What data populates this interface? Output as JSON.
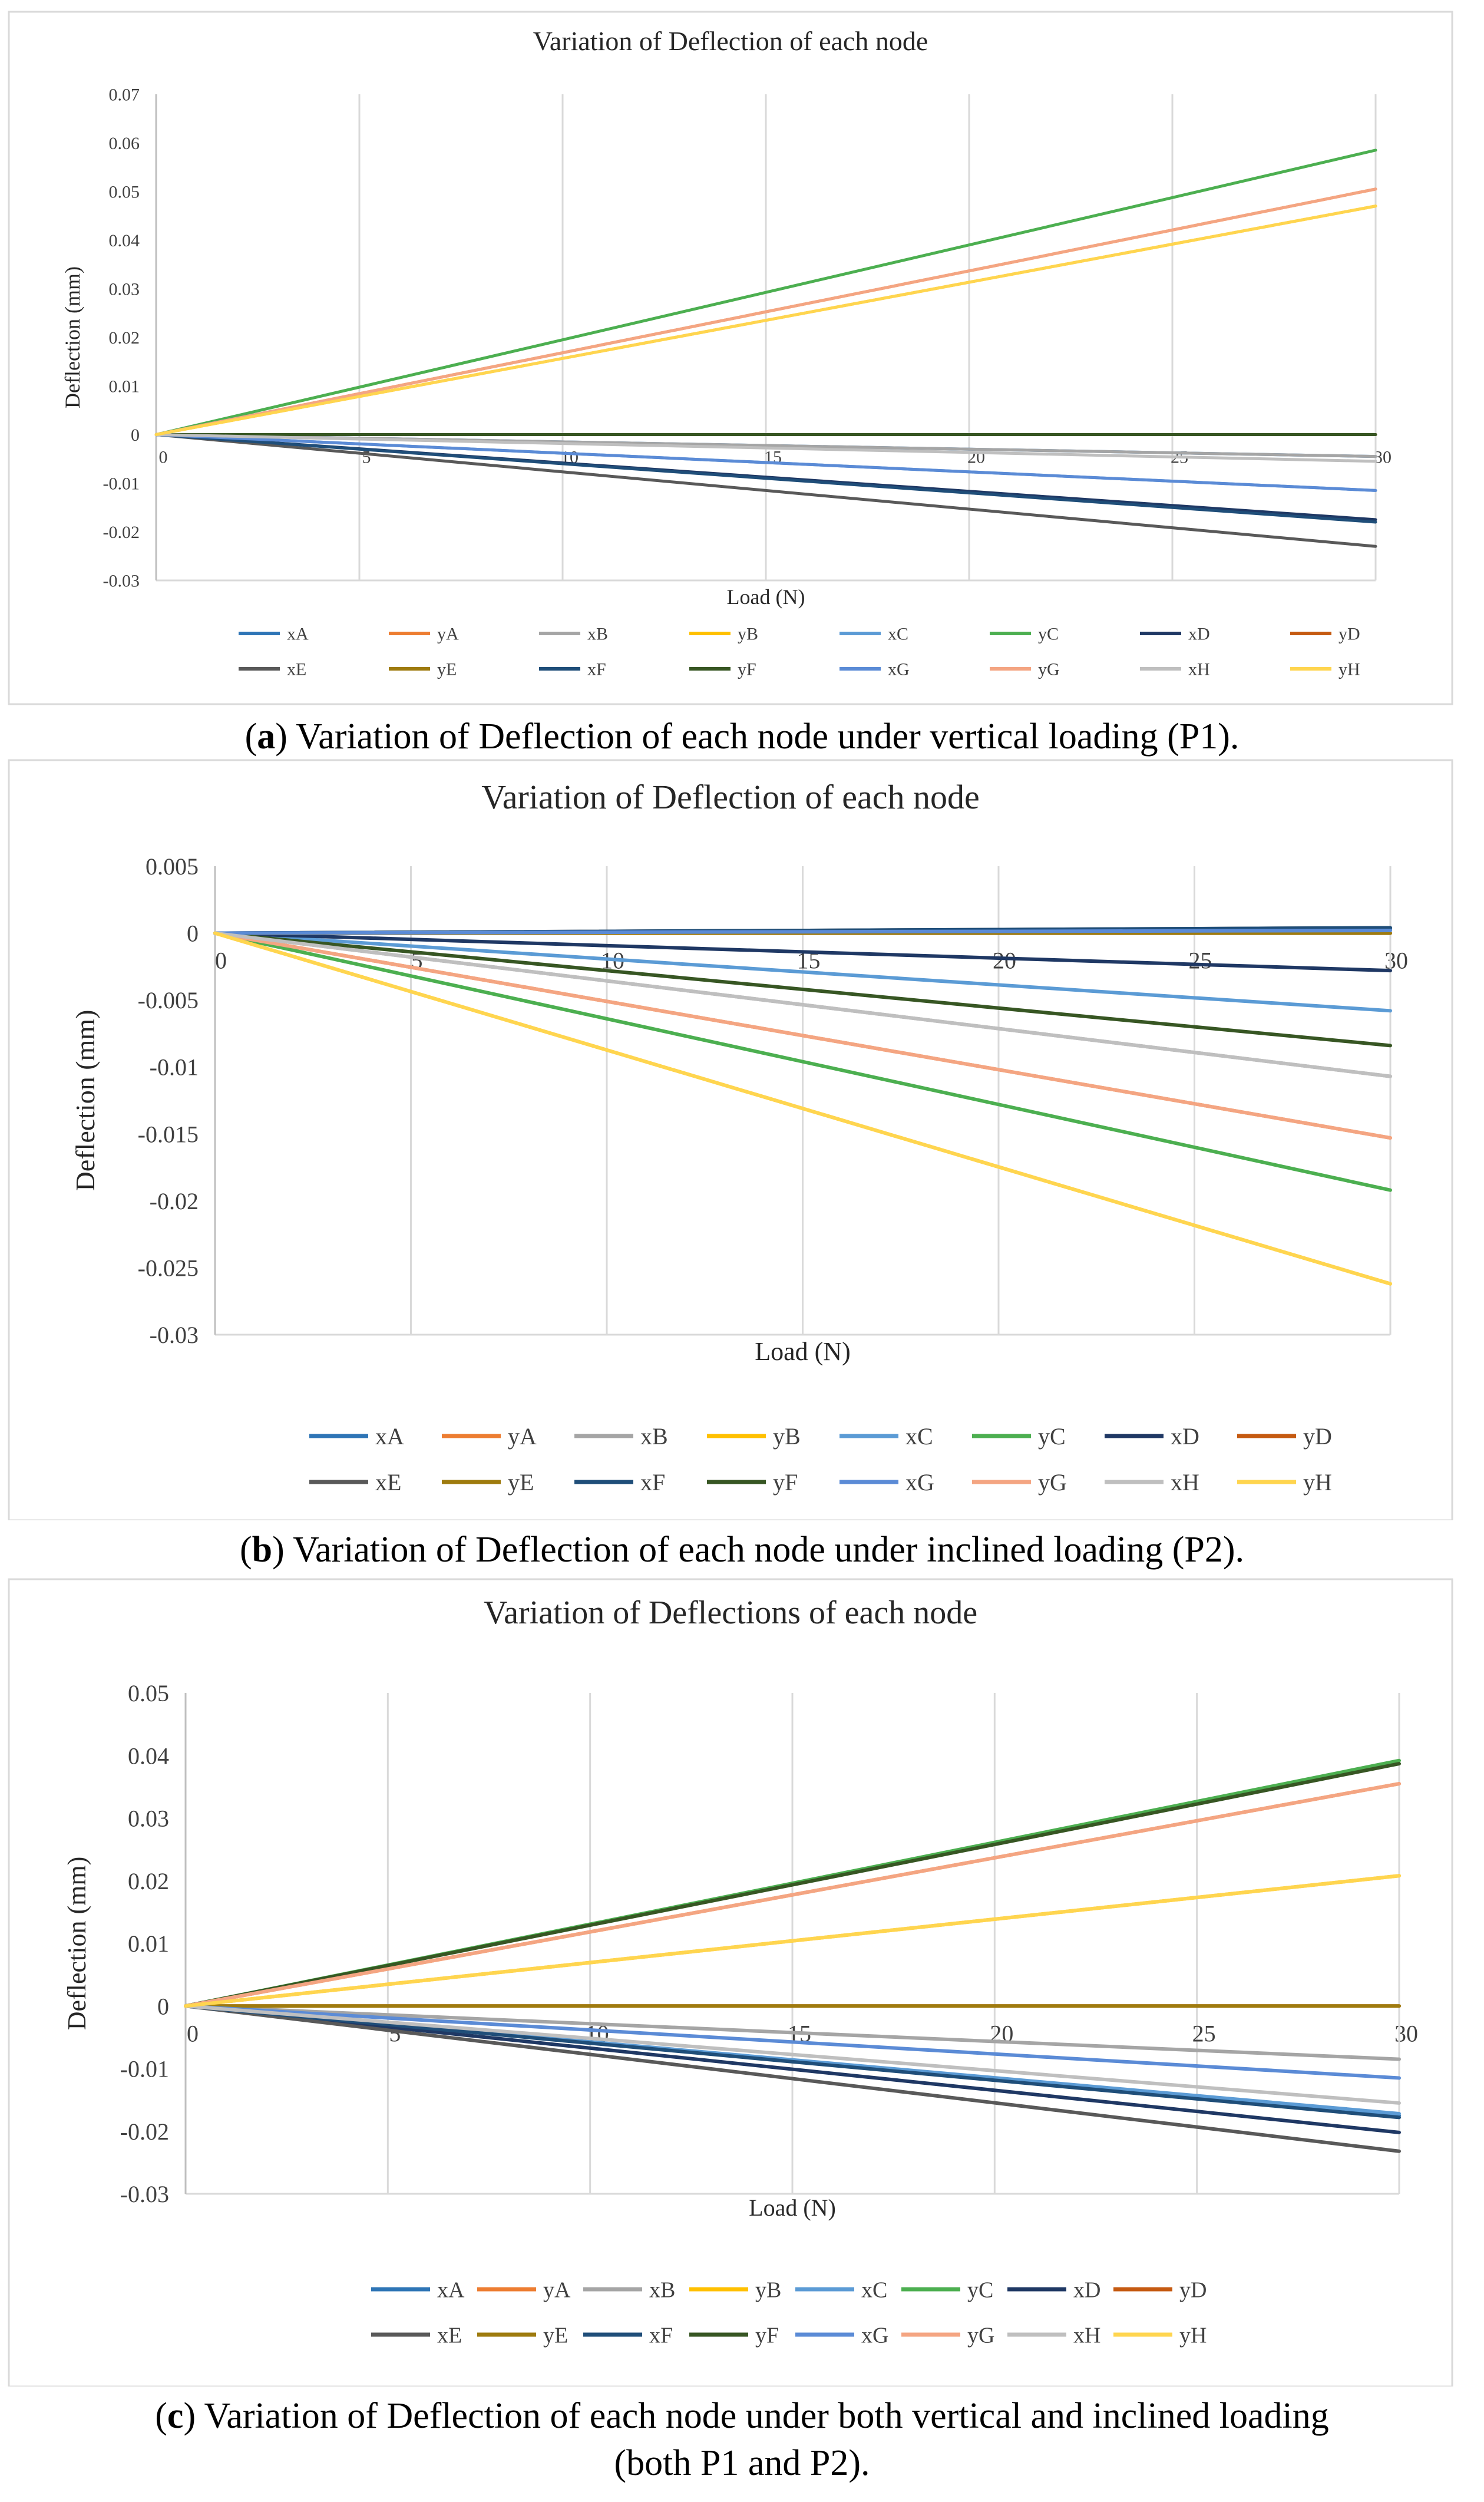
{
  "chart_data": [
    {
      "type": "line",
      "title": "Variation of Deflection of each node",
      "xlabel": "Load (N)",
      "ylabel": "Deflection (mm)",
      "x": [
        0,
        30
      ],
      "xlim": [
        0,
        30
      ],
      "ylim": [
        -0.03,
        0.07
      ],
      "xticks": [
        "0",
        "5",
        "10",
        "15",
        "20",
        "25",
        "30"
      ],
      "yticks": [
        "-0.03",
        "-0.02",
        "-0.01",
        "0",
        "0.01",
        "0.02",
        "0.03",
        "0.04",
        "0.05",
        "0.06",
        "0.07"
      ],
      "grid": "vertical",
      "legend_position": "bottom",
      "caption_label": "a",
      "caption_text": ") Variation of Deflection of each node under vertical loading (P1).",
      "series": [
        {
          "name": "xA",
          "color": "#2E75B6",
          "values": [
            0,
            -0.0045
          ]
        },
        {
          "name": "yA",
          "color": "#ED7D31",
          "values": [
            0,
            0.0505
          ]
        },
        {
          "name": "xB",
          "color": "#A5A5A5",
          "values": [
            0,
            -0.0045
          ]
        },
        {
          "name": "yB",
          "color": "#FFC000",
          "values": [
            0,
            0.047
          ]
        },
        {
          "name": "xC",
          "color": "#5B9BD5",
          "values": [
            0,
            -0.0115
          ]
        },
        {
          "name": "yC",
          "color": "#4CAF50",
          "values": [
            0,
            0.0585
          ]
        },
        {
          "name": "xD",
          "color": "#1F3864",
          "values": [
            0,
            -0.0175
          ]
        },
        {
          "name": "yD",
          "color": "#C55A11",
          "values": [
            0,
            0
          ]
        },
        {
          "name": "xE",
          "color": "#595959",
          "values": [
            0,
            -0.023
          ]
        },
        {
          "name": "yE",
          "color": "#9E7B0E",
          "values": [
            0,
            0
          ]
        },
        {
          "name": "xF",
          "color": "#1F4E79",
          "values": [
            0,
            -0.018
          ]
        },
        {
          "name": "yF",
          "color": "#375623",
          "values": [
            0,
            0
          ]
        },
        {
          "name": "xG",
          "color": "#5B8BD6",
          "values": [
            0,
            -0.0115
          ]
        },
        {
          "name": "yG",
          "color": "#F4A582",
          "values": [
            0,
            0.0505
          ]
        },
        {
          "name": "xH",
          "color": "#BFBFBF",
          "values": [
            0,
            -0.0055
          ]
        },
        {
          "name": "yH",
          "color": "#FFD54F",
          "values": [
            0,
            0.047
          ]
        }
      ]
    },
    {
      "type": "line",
      "title": "Variation of Deflection of each node",
      "xlabel": "Load (N)",
      "ylabel": "Deflection (mm)",
      "x": [
        0,
        30
      ],
      "xlim": [
        0,
        30
      ],
      "ylim": [
        -0.03,
        0.005
      ],
      "xticks": [
        "0",
        "5",
        "10",
        "15",
        "20",
        "25",
        "30"
      ],
      "yticks": [
        "-0.03",
        "-0.025",
        "-0.02",
        "-0.015",
        "-0.01",
        "-0.005",
        "0",
        "0.005"
      ],
      "grid": "vertical",
      "legend_position": "bottom",
      "caption_label": "b",
      "caption_text": ") Variation of Deflection of each node under inclined loading (P2).",
      "series": [
        {
          "name": "xA",
          "color": "#2E75B6",
          "values": [
            0,
            0.0003
          ]
        },
        {
          "name": "yA",
          "color": "#ED7D31",
          "values": [
            0,
            -0.0153
          ]
        },
        {
          "name": "xB",
          "color": "#A5A5A5",
          "values": [
            0,
            -0.0107
          ]
        },
        {
          "name": "yB",
          "color": "#FFC000",
          "values": [
            0,
            -0.0262
          ]
        },
        {
          "name": "xC",
          "color": "#5B9BD5",
          "values": [
            0,
            -0.0058
          ]
        },
        {
          "name": "yC",
          "color": "#4CAF50",
          "values": [
            0,
            -0.0192
          ]
        },
        {
          "name": "xD",
          "color": "#1F3864",
          "values": [
            0,
            -0.0028
          ]
        },
        {
          "name": "yD",
          "color": "#C55A11",
          "values": [
            0,
            0
          ]
        },
        {
          "name": "xE",
          "color": "#595959",
          "values": [
            0,
            0.0004
          ]
        },
        {
          "name": "yE",
          "color": "#9E7B0E",
          "values": [
            0,
            0
          ]
        },
        {
          "name": "xF",
          "color": "#1F4E79",
          "values": [
            0,
            0.0004
          ]
        },
        {
          "name": "yF",
          "color": "#375623",
          "values": [
            0,
            -0.0084
          ]
        },
        {
          "name": "xG",
          "color": "#5B8BD6",
          "values": [
            0,
            0.0002
          ]
        },
        {
          "name": "yG",
          "color": "#F4A582",
          "values": [
            0,
            -0.0153
          ]
        },
        {
          "name": "xH",
          "color": "#BFBFBF",
          "values": [
            0,
            -0.0107
          ]
        },
        {
          "name": "yH",
          "color": "#FFD54F",
          "values": [
            0,
            -0.0262
          ]
        }
      ]
    },
    {
      "type": "line",
      "title": "Variation of Deflections of each node",
      "xlabel": "Load (N)",
      "ylabel": "Deflection (mm)",
      "x": [
        0,
        30
      ],
      "xlim": [
        0,
        30
      ],
      "ylim": [
        -0.03,
        0.05
      ],
      "xticks": [
        "0",
        "5",
        "10",
        "15",
        "20",
        "25",
        "30"
      ],
      "yticks": [
        "-0.03",
        "-0.02",
        "-0.01",
        "0",
        "0.01",
        "0.02",
        "0.03",
        "0.04",
        "0.05"
      ],
      "grid": "vertical",
      "legend_position": "bottom",
      "caption_label": "c",
      "caption_text": ") Variation of Deflection of each node under both vertical and inclined loading",
      "caption_line2": "(both P1 and P2).",
      "series": [
        {
          "name": "xA",
          "color": "#2E75B6",
          "values": [
            0,
            -0.0175
          ]
        },
        {
          "name": "yA",
          "color": "#ED7D31",
          "values": [
            0,
            0.0355
          ]
        },
        {
          "name": "xB",
          "color": "#A5A5A5",
          "values": [
            0,
            -0.0085
          ]
        },
        {
          "name": "yB",
          "color": "#FFC000",
          "values": [
            0,
            0.0208
          ]
        },
        {
          "name": "xC",
          "color": "#5B9BD5",
          "values": [
            0,
            -0.0172
          ]
        },
        {
          "name": "yC",
          "color": "#4CAF50",
          "values": [
            0,
            0.0392
          ]
        },
        {
          "name": "xD",
          "color": "#1F3864",
          "values": [
            0,
            -0.0202
          ]
        },
        {
          "name": "yD",
          "color": "#C55A11",
          "values": [
            0,
            0
          ]
        },
        {
          "name": "xE",
          "color": "#595959",
          "values": [
            0,
            -0.0232
          ]
        },
        {
          "name": "yE",
          "color": "#9E7B0E",
          "values": [
            0,
            0
          ]
        },
        {
          "name": "xF",
          "color": "#1F4E79",
          "values": [
            0,
            -0.0178
          ]
        },
        {
          "name": "yF",
          "color": "#375623",
          "values": [
            0,
            0.0387
          ]
        },
        {
          "name": "xG",
          "color": "#5B8BD6",
          "values": [
            0,
            -0.0115
          ]
        },
        {
          "name": "yG",
          "color": "#F4A582",
          "values": [
            0,
            0.0355
          ]
        },
        {
          "name": "xH",
          "color": "#BFBFBF",
          "values": [
            0,
            -0.0155
          ]
        },
        {
          "name": "yH",
          "color": "#FFD54F",
          "values": [
            0,
            0.0208
          ]
        }
      ]
    }
  ]
}
